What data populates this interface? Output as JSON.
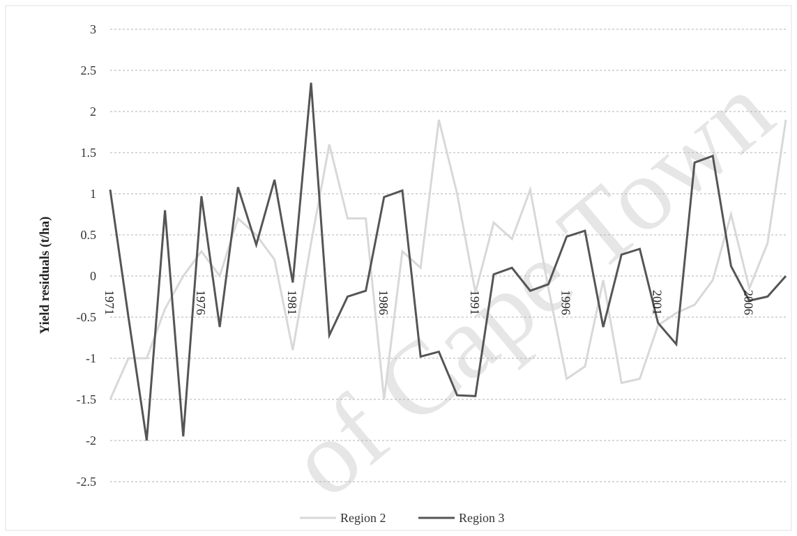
{
  "chart_data": {
    "type": "line",
    "title": "",
    "xlabel": "",
    "ylabel": "Yield residuals (t/ha)",
    "ylim": [
      -2.5,
      3
    ],
    "yticks": [
      "3",
      "2.5",
      "2",
      "1.5",
      "1",
      "0.5",
      "0",
      "-0.5",
      "-1",
      "-1.5",
      "-2",
      "-2.5"
    ],
    "ytick_values": [
      3,
      2.5,
      2,
      1.5,
      1,
      0.5,
      0,
      -0.5,
      -1,
      -1.5,
      -2,
      -2.5
    ],
    "x": [
      1971,
      1972,
      1973,
      1974,
      1975,
      1976,
      1977,
      1978,
      1979,
      1980,
      1981,
      1982,
      1983,
      1984,
      1985,
      1986,
      1987,
      1988,
      1989,
      1990,
      1991,
      1992,
      1993,
      1994,
      1995,
      1996,
      1997,
      1998,
      1999,
      2000,
      2001,
      2002,
      2003,
      2004,
      2005,
      2006,
      2007,
      2008
    ],
    "xticks": [
      "1971",
      "1976",
      "1981",
      "1986",
      "1991",
      "1996",
      "2001",
      "2006"
    ],
    "xtick_values": [
      1971,
      1976,
      1981,
      1986,
      1991,
      1996,
      2001,
      2006
    ],
    "grid": true,
    "legend_position": "bottom",
    "series": [
      {
        "name": "Region 2",
        "color": "#d8d8d8",
        "values": [
          -1.5,
          -1.0,
          -1.0,
          -0.4,
          0.0,
          0.3,
          0.0,
          0.7,
          0.5,
          0.2,
          -0.9,
          0.4,
          1.6,
          0.7,
          0.7,
          -1.5,
          0.3,
          0.1,
          1.9,
          1.0,
          -0.2,
          0.65,
          0.45,
          1.05,
          -0.15,
          -1.25,
          -1.1,
          -0.05,
          -1.3,
          -1.25,
          -0.6,
          -0.45,
          -0.35,
          -0.05,
          0.75,
          -0.15,
          0.4,
          1.9
        ]
      },
      {
        "name": "Region 3",
        "color": "#555555",
        "values": [
          1.05,
          -0.5,
          -2.0,
          0.8,
          -1.95,
          0.97,
          -0.62,
          1.08,
          0.38,
          1.17,
          -0.08,
          2.35,
          -0.72,
          -0.25,
          -0.18,
          0.96,
          1.04,
          -0.98,
          -0.92,
          -1.45,
          -1.46,
          0.02,
          0.1,
          -0.18,
          -0.1,
          0.48,
          0.55,
          -0.62,
          0.26,
          0.33,
          -0.57,
          -0.83,
          1.38,
          1.46,
          0.12,
          -0.3,
          -0.25,
          0.0
        ]
      }
    ]
  },
  "watermark": "of Cape Town"
}
